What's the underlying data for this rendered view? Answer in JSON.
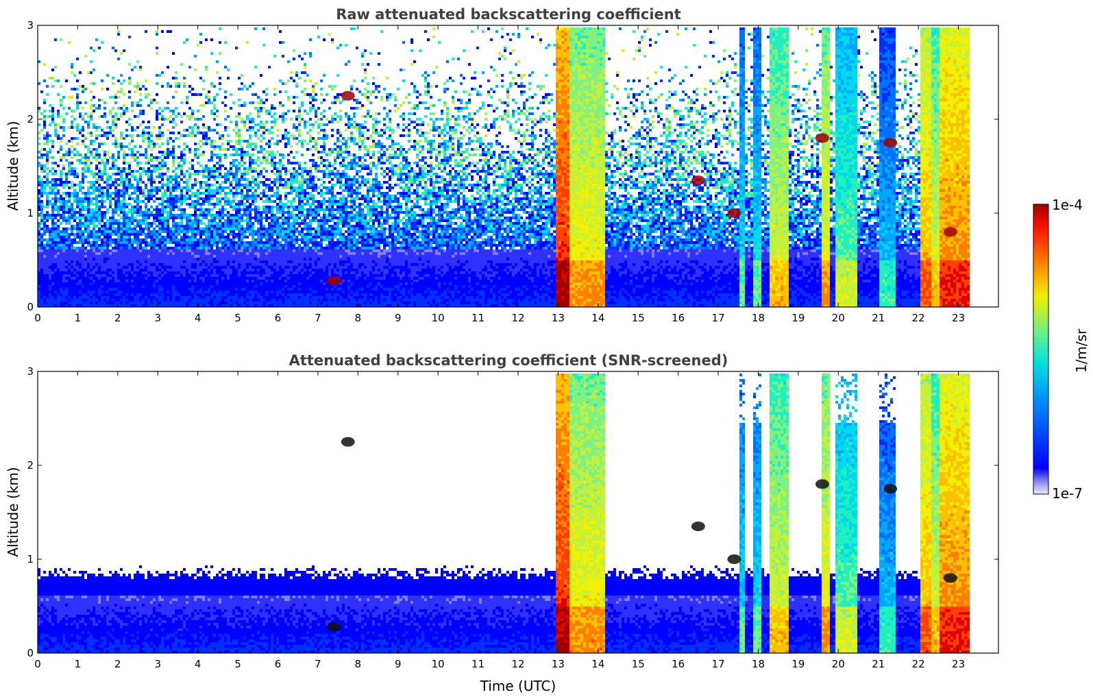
{
  "chart_data": [
    {
      "type": "heatmap",
      "title": "Raw attenuated backscattering coefficient",
      "xlabel": "",
      "ylabel": "Altitude (km)",
      "xlim": [
        0,
        24
      ],
      "ylim": [
        0,
        3
      ],
      "xticks": [
        "0",
        "1",
        "2",
        "3",
        "4",
        "5",
        "6",
        "7",
        "8",
        "9",
        "10",
        "11",
        "12",
        "13",
        "14",
        "15",
        "16",
        "17",
        "18",
        "19",
        "20",
        "21",
        "22",
        "23"
      ],
      "yticks": [
        "0",
        "1",
        "2",
        "3"
      ],
      "colorscale": "jet",
      "value_range": [
        "1e-7",
        "1e-4"
      ],
      "data_end_time": 23.3,
      "features": [
        {
          "kind": "boundary_layer",
          "t_start": 0,
          "t_end": 13.0,
          "top_km": 0.6,
          "level": 0.3
        },
        {
          "kind": "rain",
          "t_start": 12.95,
          "t_end": 13.3,
          "level": 0.9
        },
        {
          "kind": "rain",
          "t_start": 13.3,
          "t_end": 14.2,
          "level": 0.72
        },
        {
          "kind": "rain",
          "t_start": 17.5,
          "t_end": 17.7,
          "level": 0.5
        },
        {
          "kind": "rain",
          "t_start": 17.9,
          "t_end": 18.1,
          "level": 0.5
        },
        {
          "kind": "rain",
          "t_start": 18.3,
          "t_end": 18.75,
          "level": 0.68
        },
        {
          "kind": "rain",
          "t_start": 19.55,
          "t_end": 19.8,
          "level": 0.72
        },
        {
          "kind": "rain",
          "t_start": 19.95,
          "t_end": 20.45,
          "level": 0.58
        },
        {
          "kind": "rain",
          "t_start": 21.05,
          "t_end": 21.4,
          "level": 0.46
        },
        {
          "kind": "rain",
          "t_start": 22.05,
          "t_end": 22.35,
          "level": 0.78
        },
        {
          "kind": "rain",
          "t_start": 22.35,
          "t_end": 22.55,
          "level": 0.68
        },
        {
          "kind": "rain",
          "t_start": 22.55,
          "t_end": 23.3,
          "level": 0.82
        },
        {
          "kind": "cloud",
          "t": 7.4,
          "alt_km": 0.28
        },
        {
          "kind": "cloud",
          "t": 7.75,
          "alt_km": 2.25
        },
        {
          "kind": "cloud",
          "t": 16.5,
          "alt_km": 1.35
        },
        {
          "kind": "cloud",
          "t": 17.4,
          "alt_km": 1.0
        },
        {
          "kind": "cloud",
          "t": 19.6,
          "alt_km": 1.8
        },
        {
          "kind": "cloud",
          "t": 21.3,
          "alt_km": 1.75
        },
        {
          "kind": "cloud",
          "t": 22.8,
          "alt_km": 0.8
        }
      ]
    },
    {
      "type": "heatmap",
      "title": "Attenuated backscattering coefficient (SNR-screened)",
      "xlabel": "Time (UTC)",
      "ylabel": "Altitude (km)",
      "xlim": [
        0,
        24
      ],
      "ylim": [
        0,
        3
      ],
      "xticks": [
        "0",
        "1",
        "2",
        "3",
        "4",
        "5",
        "6",
        "7",
        "8",
        "9",
        "10",
        "11",
        "12",
        "13",
        "14",
        "15",
        "16",
        "17",
        "18",
        "19",
        "20",
        "21",
        "22",
        "23"
      ],
      "yticks": [
        "0",
        "1",
        "2",
        "3"
      ],
      "colorscale": "jet",
      "value_range": [
        "1e-7",
        "1e-4"
      ],
      "data_end_time": 23.3,
      "screened_top_km": 0.85
    }
  ],
  "colorbar": {
    "label": "1/m/sr",
    "max_label": "1e-4",
    "min_label": "1e-7",
    "colors": [
      "#e8e8fa",
      "#b8b8f5",
      "#8080f0",
      "#3030ff",
      "#0000ff",
      "#0030ff",
      "#0070ff",
      "#00a8ff",
      "#00d8f0",
      "#20f0c0",
      "#80f080",
      "#c0f040",
      "#f0f000",
      "#ffc000",
      "#ff8000",
      "#ff4000",
      "#e00000",
      "#a00000"
    ]
  }
}
